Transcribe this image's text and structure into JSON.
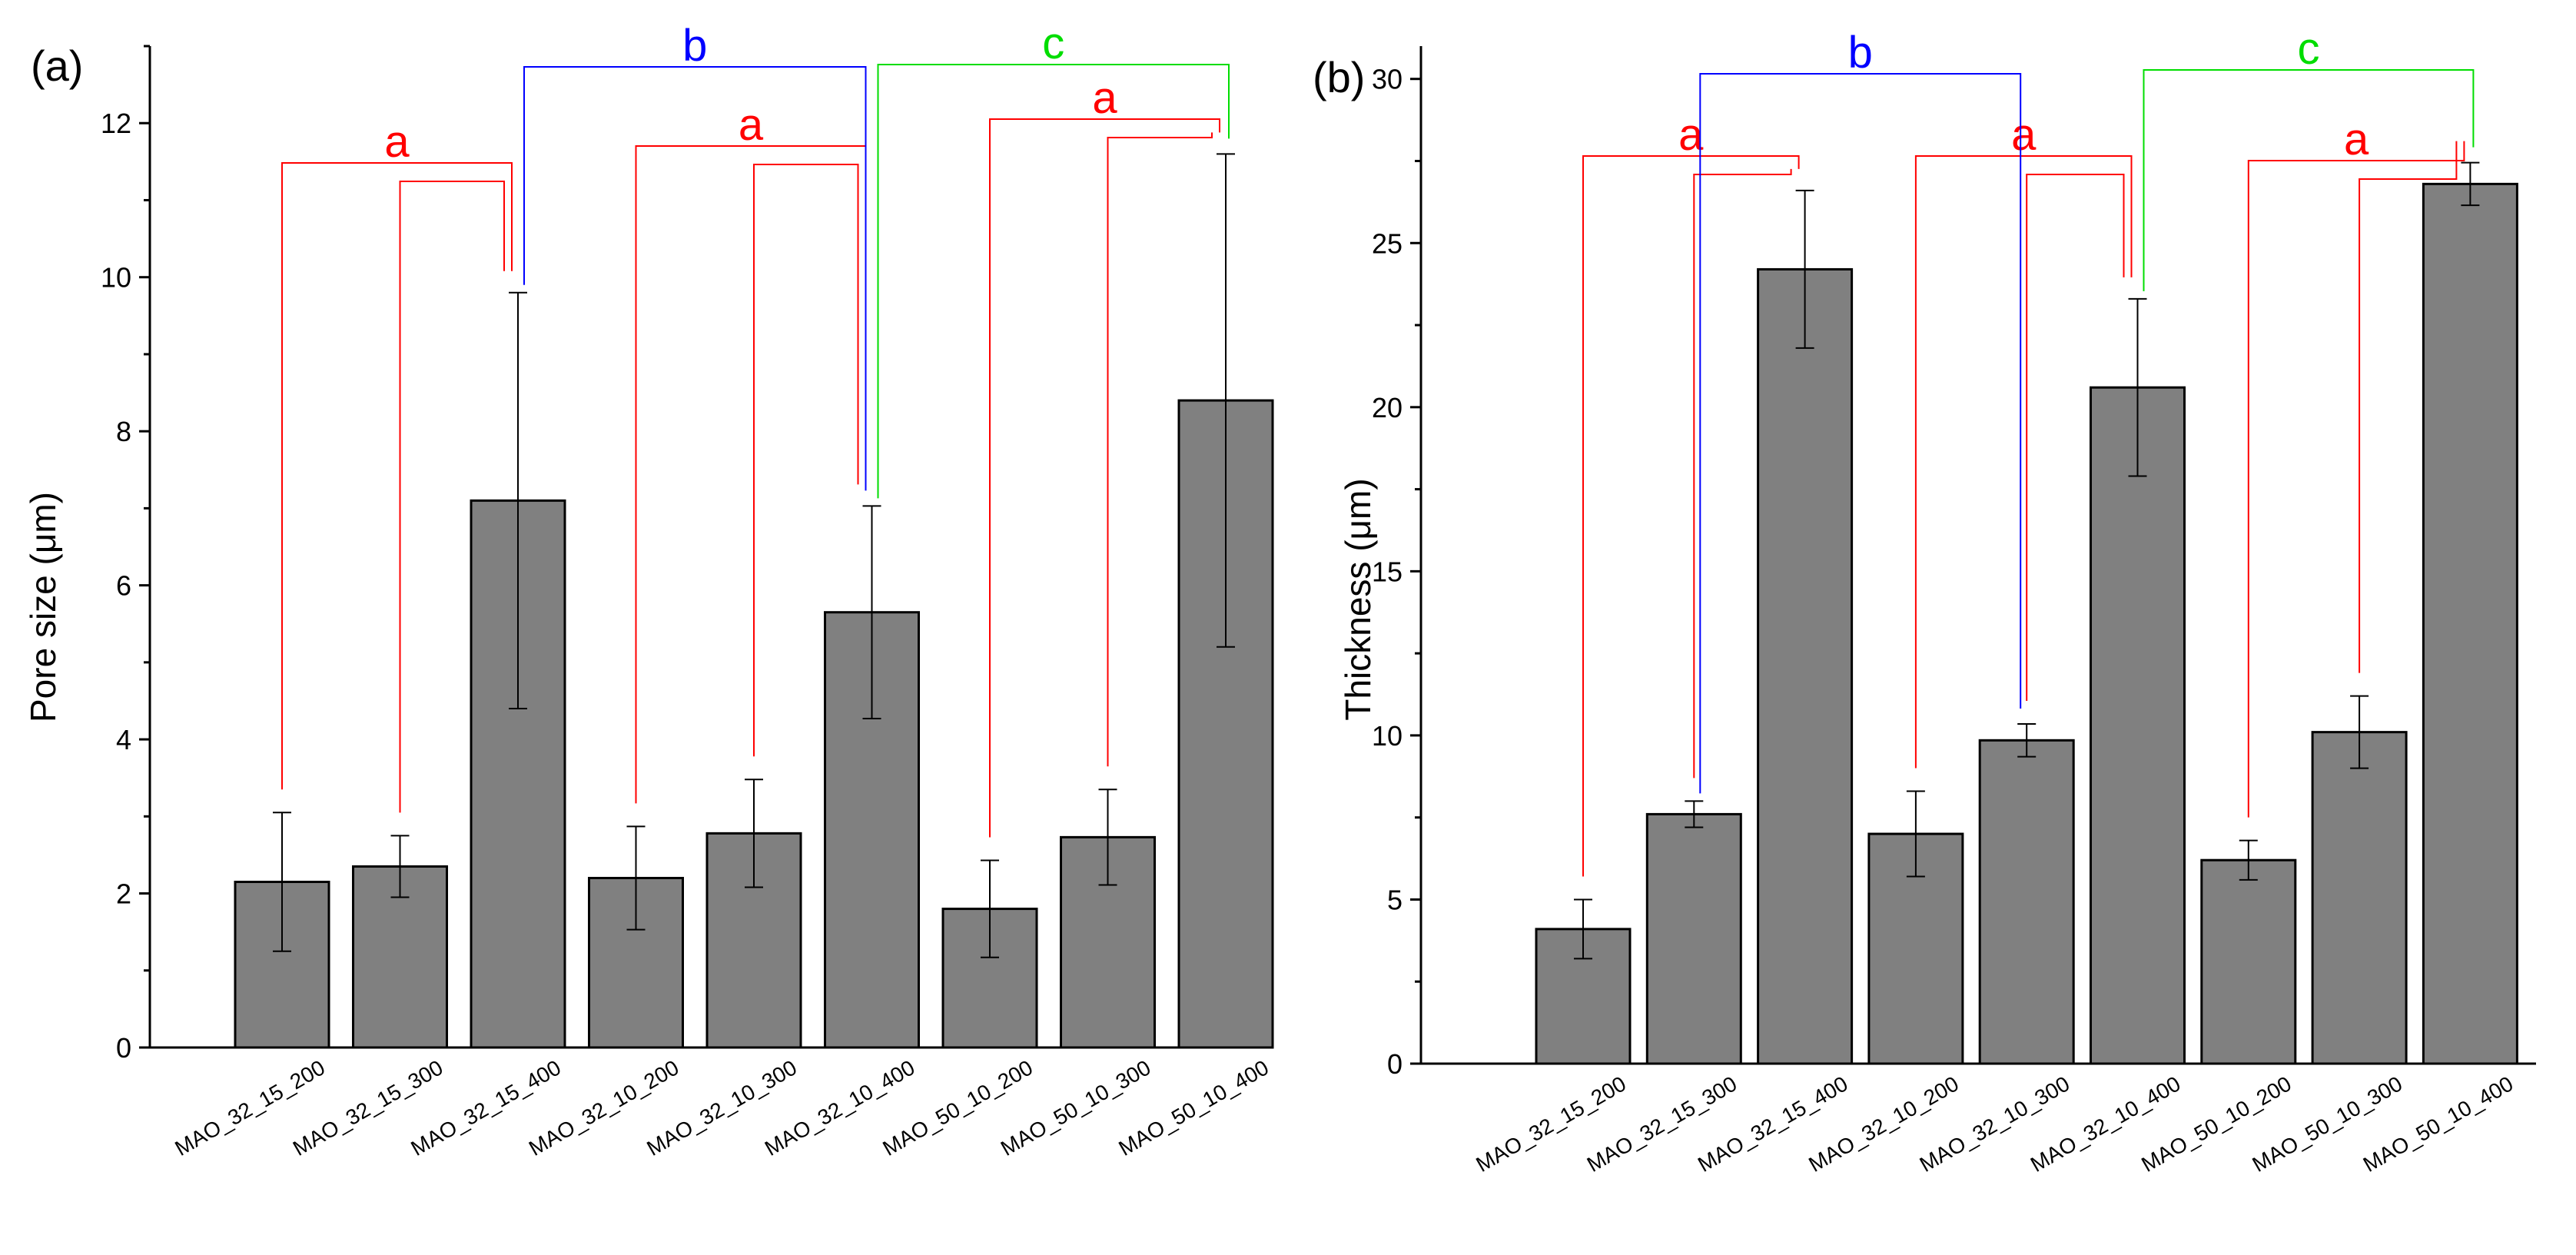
{
  "chart_data": [
    {
      "panel": "(a)",
      "type": "bar",
      "ylabel": "Pore size (μm)",
      "ylim": [
        0,
        13
      ],
      "yticks": [
        0,
        2,
        4,
        6,
        8,
        10,
        12
      ],
      "categories": [
        "MAO_32_15_200",
        "MAO_32_15_300",
        "MAO_32_15_400",
        "MAO_32_10_200",
        "MAO_32_10_300",
        "MAO_32_10_400",
        "MAO_50_10_200",
        "MAO_50_10_300",
        "MAO_50_10_400"
      ],
      "values": [
        2.15,
        2.35,
        7.1,
        2.2,
        2.78,
        5.65,
        1.8,
        2.73,
        8.4
      ],
      "errors": [
        0.9,
        0.4,
        2.7,
        0.67,
        0.7,
        1.38,
        0.63,
        0.62,
        3.2
      ],
      "significance": [
        {
          "label": "a",
          "color": "#ff0000",
          "groups": [
            0,
            1,
            2
          ]
        },
        {
          "label": "a",
          "color": "#ff0000",
          "groups": [
            3,
            4,
            5
          ]
        },
        {
          "label": "a",
          "color": "#ff0000",
          "groups": [
            6,
            7,
            8
          ]
        },
        {
          "label": "b",
          "color": "#0000ff",
          "groups": [
            2,
            5
          ]
        },
        {
          "label": "c",
          "color": "#00dd00",
          "groups": [
            5,
            8
          ]
        }
      ]
    },
    {
      "panel": "(b)",
      "type": "bar",
      "ylabel": "Thickness (μm)",
      "ylim": [
        0,
        31
      ],
      "yticks": [
        0,
        5,
        10,
        15,
        20,
        25,
        30
      ],
      "categories": [
        "MAO_32_15_200",
        "MAO_32_15_300",
        "MAO_32_15_400",
        "MAO_32_10_200",
        "MAO_32_10_300",
        "MAO_32_10_400",
        "MAO_50_10_200",
        "MAO_50_10_300",
        "MAO_50_10_400"
      ],
      "values": [
        4.1,
        7.6,
        24.2,
        7.0,
        9.85,
        20.6,
        6.2,
        10.1,
        26.8
      ],
      "errors": [
        0.9,
        0.4,
        2.4,
        1.3,
        0.5,
        2.7,
        0.6,
        1.1,
        0.65
      ],
      "significance": [
        {
          "label": "a",
          "color": "#ff0000",
          "groups": [
            0,
            1,
            2
          ]
        },
        {
          "label": "a",
          "color": "#ff0000",
          "groups": [
            3,
            4,
            5
          ]
        },
        {
          "label": "a",
          "color": "#ff0000",
          "groups": [
            6,
            7,
            8
          ]
        },
        {
          "label": "b",
          "color": "#0000ff",
          "groups": [
            1,
            4
          ]
        },
        {
          "label": "c",
          "color": "#00dd00",
          "groups": [
            5,
            8
          ]
        }
      ]
    }
  ]
}
